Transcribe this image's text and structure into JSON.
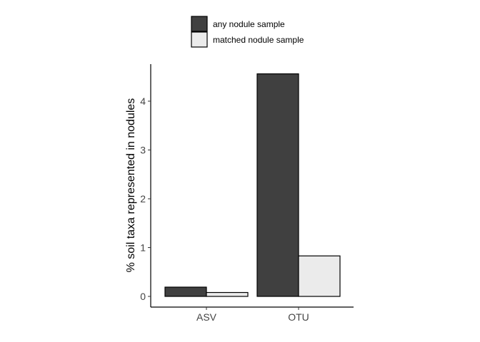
{
  "chart_data": {
    "type": "bar",
    "categories": [
      "ASV",
      "OTU"
    ],
    "series": [
      {
        "name": "any nodule sample",
        "values": [
          0.19,
          4.56
        ],
        "color": "#404040"
      },
      {
        "name": "matched nodule sample",
        "values": [
          0.08,
          0.83
        ],
        "color": "#ebebeb"
      }
    ],
    "xlabel": "",
    "ylabel": "% soil taxa represented in nodules",
    "ylim": [
      -0.22,
      4.78
    ],
    "yticks": [
      0,
      1,
      2,
      3,
      4
    ],
    "legend_position": "top",
    "grid": false
  }
}
